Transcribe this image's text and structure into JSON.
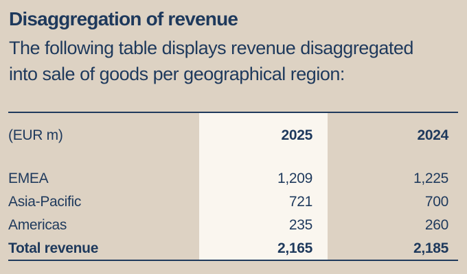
{
  "page": {
    "title": "Disaggregation of revenue",
    "intro_lines": [
      "The following table displays revenue disaggregated",
      "into sale of goods per geographical region:"
    ]
  },
  "table": {
    "unit_label": "(EUR m)",
    "columns": [
      "2025",
      "2024"
    ],
    "rows": [
      {
        "label": "EMEA",
        "y2025": "1,209",
        "y2024": "1,225"
      },
      {
        "label": "Asia-Pacific",
        "y2025": "721",
        "y2024": "700"
      },
      {
        "label": "Americas",
        "y2025": "235",
        "y2024": "260"
      }
    ],
    "total": {
      "label": "Total revenue",
      "y2025": "2,165",
      "y2024": "2,185"
    }
  },
  "colors": {
    "background": "#ddd2c3",
    "highlight_column": "#faf6ef",
    "text_and_rules": "#1e395c"
  }
}
